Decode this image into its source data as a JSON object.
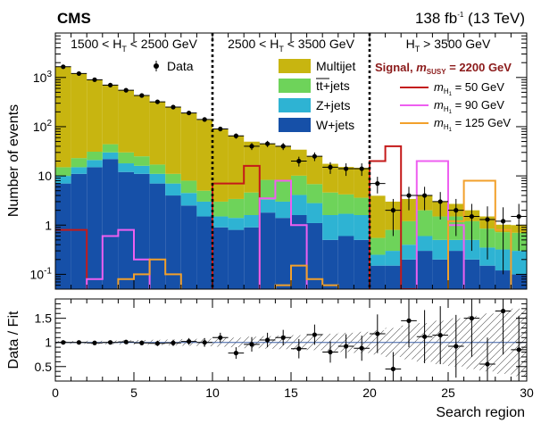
{
  "header": {
    "experiment": "CMS",
    "lumi_value": "138 fb",
    "lumi_exp": "-1",
    "lumi_energy": " (13 TeV)"
  },
  "regions": [
    {
      "prefix": "1500 < H",
      "sub": "T",
      "suffix": " < 2500 GeV"
    },
    {
      "prefix": "2500 < H",
      "sub": "T",
      "suffix": " < 3500 GeV"
    },
    {
      "prefix": "H",
      "sub": "T",
      "suffix": " > 3500 GeV"
    }
  ],
  "legend": {
    "data_label": "Data",
    "backgrounds": [
      {
        "key": "multijet",
        "pre": "Multijet",
        "post": ""
      },
      {
        "key": "ttbar",
        "pre": "tt",
        "post": "+jets"
      },
      {
        "key": "zjets",
        "pre": "Z+jets",
        "post": ""
      },
      {
        "key": "wjets",
        "pre": "W+jets",
        "post": ""
      }
    ],
    "signal_title_pre": "Signal, ",
    "signal_title_m": "m",
    "signal_title_sub": "SUSY",
    "signal_title_post": " = 2200 GeV",
    "signal_entries": [
      {
        "key": "h50",
        "m": "m",
        "sub": "H",
        "subsub": "1",
        "post": " = 50 GeV"
      },
      {
        "key": "h90",
        "m": "m",
        "sub": "H",
        "subsub": "1",
        "post": " = 90 GeV"
      },
      {
        "key": "h125",
        "m": "m",
        "sub": "H",
        "subsub": "1",
        "post": " = 125 GeV"
      }
    ]
  },
  "colors": {
    "multijet": "#c8b510",
    "ttbar": "#6ed35a",
    "zjets": "#2eb3d3",
    "wjets": "#1650a8",
    "h50": "#c41a1a",
    "h90": "#ee5ff0",
    "h125": "#f2a02b",
    "signal_title": "#8b1a1a",
    "ratio_line": "#3a5fa5"
  },
  "chart_data": [
    {
      "type": "bar",
      "stacked": true,
      "yscale": "log",
      "xlim": [
        0,
        30
      ],
      "ylim": [
        0.05,
        8000
      ],
      "xlabel": "Search region",
      "ylabel": "Number of events",
      "yticks": [
        {
          "v": 1000,
          "base": "10",
          "exp": "3"
        },
        {
          "v": 100,
          "base": "10",
          "exp": "2"
        },
        {
          "v": 10,
          "base": "10",
          "exp": ""
        },
        {
          "v": 1,
          "base": "1",
          "exp": ""
        },
        {
          "v": 0.1,
          "base": "10",
          "exp": "-1"
        }
      ],
      "series": [
        {
          "name": "W+jets",
          "key": "wjets",
          "values": [
            7,
            11,
            15,
            22,
            12,
            11,
            7,
            4,
            2.5,
            1.5,
            0.9,
            0.8,
            0.9,
            1.8,
            1.4,
            1.6,
            1.1,
            0.5,
            0.6,
            0.5,
            0.15,
            0.15,
            0.2,
            0.3,
            0.2,
            0.3,
            0.2,
            0.15,
            0.12,
            0.1
          ]
        },
        {
          "name": "Z+jets",
          "key": "zjets",
          "values": [
            3,
            4,
            6,
            8,
            6,
            5,
            4,
            3,
            2,
            1.5,
            0.6,
            0.6,
            0.7,
            1.5,
            1.6,
            2.5,
            1.7,
            1.1,
            1.1,
            1.1,
            0.1,
            0.15,
            0.2,
            0.3,
            0.3,
            0.2,
            0.3,
            0.2,
            0.2,
            0.2
          ]
        },
        {
          "name": "tt+jets",
          "key": "ttbar",
          "values": [
            5,
            8,
            10,
            14,
            12,
            9,
            6,
            4,
            3.5,
            2,
            1.5,
            2,
            3,
            5,
            5,
            6,
            4,
            3,
            2.5,
            2,
            0.3,
            0.5,
            0.8,
            1.4,
            1,
            1,
            0.7,
            0.5,
            0.4,
            0.4
          ]
        },
        {
          "name": "Multijet",
          "key": "multijet",
          "values": [
            1635,
            1177,
            869,
            656,
            520,
            405,
            303,
            239,
            182,
            132,
            85,
            62,
            45,
            37,
            32,
            24,
            18,
            13,
            11,
            11,
            3.4,
            2.2,
            2.2,
            2.0,
            1.5,
            1.2,
            0.8,
            0.65,
            0.3,
            0.3
          ]
        }
      ],
      "data_points": [
        {
          "x": 0.5,
          "y": 1650,
          "err": 40
        },
        {
          "x": 1.5,
          "y": 1200,
          "err": 35
        },
        {
          "x": 2.5,
          "y": 900,
          "err": 30
        },
        {
          "x": 3.5,
          "y": 700,
          "err": 26
        },
        {
          "x": 4.5,
          "y": 550,
          "err": 23
        },
        {
          "x": 5.5,
          "y": 430,
          "err": 21
        },
        {
          "x": 6.5,
          "y": 320,
          "err": 18
        },
        {
          "x": 7.5,
          "y": 250,
          "err": 16
        },
        {
          "x": 8.5,
          "y": 190,
          "err": 14
        },
        {
          "x": 9.5,
          "y": 140,
          "err": 12
        },
        {
          "x": 10.5,
          "y": 90,
          "err": 9.5
        },
        {
          "x": 11.5,
          "y": 65,
          "err": 8
        },
        {
          "x": 12.5,
          "y": 40,
          "err": 6.5
        },
        {
          "x": 13.5,
          "y": 45,
          "err": 6.5
        },
        {
          "x": 14.5,
          "y": 40,
          "err": 6.5
        },
        {
          "x": 15.5,
          "y": 20,
          "err": 4.5
        },
        {
          "x": 16.5,
          "y": 25,
          "err": 5
        },
        {
          "x": 17.5,
          "y": 15,
          "err": 4
        },
        {
          "x": 18.5,
          "y": 14,
          "err": 4
        },
        {
          "x": 19.5,
          "y": 14,
          "err": 4
        },
        {
          "x": 20.5,
          "y": 7,
          "err": 2.6
        },
        {
          "x": 21.5,
          "y": 2,
          "err": 1.4
        },
        {
          "x": 22.5,
          "y": 4,
          "err": 2
        },
        {
          "x": 23.5,
          "y": 4,
          "err": 2
        },
        {
          "x": 24.5,
          "y": 3,
          "err": 1.7
        },
        {
          "x": 25.5,
          "y": 2,
          "err": 1.4
        },
        {
          "x": 26.5,
          "y": 1.5,
          "err": 1.2
        },
        {
          "x": 27.5,
          "y": 1.3,
          "err": 1.1
        },
        {
          "x": 28.5,
          "y": 1.2,
          "err": 1.1
        },
        {
          "x": 29.5,
          "y": 1.5,
          "err": 1.2
        }
      ],
      "signals": [
        {
          "name": "m_H1 = 50 GeV",
          "key": "h50",
          "values": [
            0.8,
            0.8,
            0.02,
            0.02,
            0.02,
            0.02,
            0.02,
            0.02,
            0.02,
            0.02,
            7,
            7,
            16,
            0.02,
            0.02,
            0.02,
            0.02,
            0.02,
            0.02,
            0.02,
            20,
            40,
            0.05,
            0.02,
            0.02,
            0.02,
            0.02,
            0.02,
            0.02,
            0.02
          ]
        },
        {
          "name": "m_H1 = 90 GeV",
          "key": "h90",
          "values": [
            0.02,
            0.02,
            0.08,
            0.6,
            0.8,
            0.2,
            0.02,
            0.02,
            0.02,
            0.02,
            0.02,
            0.02,
            0.02,
            3.5,
            8,
            1,
            0.02,
            0.02,
            0.02,
            0.02,
            0.02,
            0.02,
            0.02,
            20,
            20,
            1,
            0.02,
            0.02,
            0.02,
            0.02
          ]
        },
        {
          "name": "m_H1 = 125 GeV",
          "key": "h125",
          "values": [
            0.02,
            0.02,
            0.02,
            0.02,
            0.08,
            0.1,
            0.2,
            0.1,
            0.02,
            0.02,
            0.02,
            0.02,
            0.02,
            0.02,
            0.06,
            0.15,
            0.08,
            0.06,
            0.02,
            0.02,
            0.02,
            0.02,
            0.02,
            0.02,
            0.04,
            1.2,
            8,
            8,
            0.8,
            0.02
          ]
        }
      ]
    },
    {
      "type": "scatter",
      "xlabel": "Search region",
      "ylabel": "Data / Fit",
      "xlim": [
        0,
        30
      ],
      "ylim": [
        0.2,
        1.9
      ],
      "xticks": [
        0,
        5,
        10,
        15,
        20,
        25,
        30
      ],
      "yticks": [
        0.5,
        1,
        1.5
      ],
      "reference_line": 1,
      "ratio_points": [
        {
          "x": 0.5,
          "y": 1.0,
          "err": 0.03
        },
        {
          "x": 1.5,
          "y": 1.0,
          "err": 0.03
        },
        {
          "x": 2.5,
          "y": 0.99,
          "err": 0.035
        },
        {
          "x": 3.5,
          "y": 1.0,
          "err": 0.04
        },
        {
          "x": 4.5,
          "y": 1.01,
          "err": 0.04
        },
        {
          "x": 5.5,
          "y": 0.99,
          "err": 0.05
        },
        {
          "x": 6.5,
          "y": 0.98,
          "err": 0.055
        },
        {
          "x": 7.5,
          "y": 0.99,
          "err": 0.065
        },
        {
          "x": 8.5,
          "y": 1.02,
          "err": 0.07
        },
        {
          "x": 9.5,
          "y": 1.0,
          "err": 0.09
        },
        {
          "x": 10.5,
          "y": 1.1,
          "err": 0.1
        },
        {
          "x": 11.5,
          "y": 0.78,
          "err": 0.12
        },
        {
          "x": 12.5,
          "y": 0.96,
          "err": 0.15
        },
        {
          "x": 13.5,
          "y": 1.05,
          "err": 0.15
        },
        {
          "x": 14.5,
          "y": 1.1,
          "err": 0.16
        },
        {
          "x": 15.5,
          "y": 0.87,
          "err": 0.2
        },
        {
          "x": 16.5,
          "y": 1.16,
          "err": 0.21
        },
        {
          "x": 17.5,
          "y": 0.8,
          "err": 0.22
        },
        {
          "x": 18.5,
          "y": 0.92,
          "err": 0.25
        },
        {
          "x": 19.5,
          "y": 0.88,
          "err": 0.26
        },
        {
          "x": 20.5,
          "y": 1.18,
          "err": 0.4
        },
        {
          "x": 21.5,
          "y": 0.45,
          "err": 0.35
        },
        {
          "x": 22.5,
          "y": 1.45,
          "err": 0.55
        },
        {
          "x": 23.5,
          "y": 1.12,
          "err": 0.55
        },
        {
          "x": 24.5,
          "y": 1.15,
          "err": 0.6
        },
        {
          "x": 25.5,
          "y": 0.92,
          "err": 0.65
        },
        {
          "x": 26.5,
          "y": 1.5,
          "err": 0.8
        },
        {
          "x": 27.5,
          "y": 0.55,
          "err": 0.55
        },
        {
          "x": 28.5,
          "y": 1.65,
          "err": 0.9
        },
        {
          "x": 29.5,
          "y": 0.85,
          "err": 0.7
        }
      ],
      "fit_band": [
        0.03,
        0.03,
        0.035,
        0.04,
        0.045,
        0.05,
        0.055,
        0.06,
        0.07,
        0.08,
        0.09,
        0.1,
        0.12,
        0.13,
        0.14,
        0.15,
        0.16,
        0.18,
        0.2,
        0.22,
        0.25,
        0.3,
        0.35,
        0.4,
        0.45,
        0.5,
        0.55,
        0.6,
        0.65,
        0.7
      ]
    }
  ]
}
